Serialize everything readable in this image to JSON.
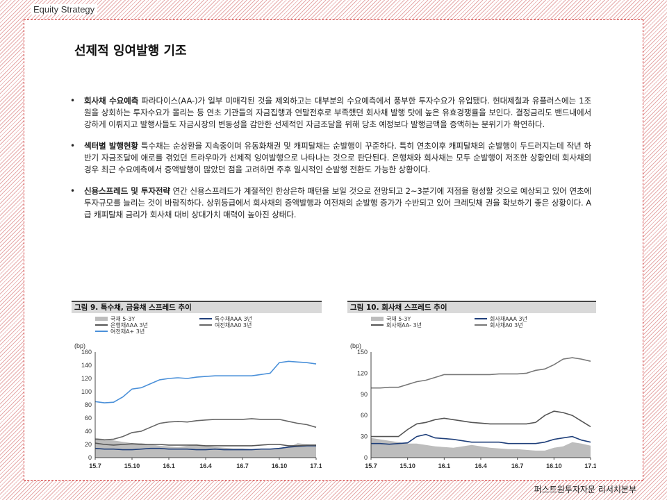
{
  "header": {
    "label": "Equity Strategy"
  },
  "title": "선제적 잉여발행 기조",
  "bullets": [
    {
      "bold": "회사채 수요예측",
      "text": " 파라다이스(AA-)가 일부 미매각된 것을 제외하고는 대부분의 수요예측에서 풍부한 투자수요가 유입됐다. 현대제철과 유플러스에는 1조원을 상회하는 투자수요가 몰리는 등 연초 기관들의 자금집행과 연말전후로 부족했던 회사채 발행 탓에 높은 유효경쟁률을 보인다. 결정금리도 밴드내에서 강하게 이뤄지고 발행사들도 자금시장의 변동성을 감안한 선제적인 자금조달을 위해 당초 예정보다 발행금액을 증액하는 분위기가 확연하다."
    },
    {
      "bold": "섹터별 발행현황",
      "text": " 특수채는 순상환을 지속중이며 유동화채권 및 캐피탈채는 순발행이 꾸준하다. 특히 연초이후 캐피탈채의 순발행이 두드러지는데 작년 하반기 자금조달에 애로를 겪었던 트라우마가 선제적 잉여발행으로 나타나는 것으로 판단된다. 은행채와 회사채는 모두 순발행이 저조한 상황인데 회사채의 경우 최근 수요예측에서 증액발행이 많았던 점을 고려하면 주후 일시적인 순발행 전환도 가능한 상황이다."
    },
    {
      "bold": "신용스프레드 및 투자전략",
      "text": " 연간 신용스프레드가 계절적인 한상은하 패턴을 보일 것으로 전망되고 2~3분기에 저점을 형성할 것으로 예상되고 있어 연초에 투자규모를 늘리는 것이 바람직하다. 상위등급에서 회사채의 증액발행과 여전채의 순발행 증가가 수반되고 있어 크레딧채 권을 확보하기 좋은 상황이다. A급 캐피탈채 금리가 회사채 대비 상대가치 매력이 높아진 상태다."
    }
  ],
  "footer": "퍼스트원투자자문 리서치본부",
  "chart_data": [
    {
      "type": "line",
      "title": "그림 9. 특수채, 금융채 스프레드 추이",
      "ylabel": "(bp)",
      "ylim": [
        0,
        160
      ],
      "yticks": [
        0,
        20,
        40,
        60,
        80,
        100,
        120,
        140,
        160
      ],
      "xticks": [
        "15.7",
        "15.10",
        "16.1",
        "16.4",
        "16.7",
        "16.10",
        "17.1"
      ],
      "x": [
        0,
        1,
        2,
        3,
        4,
        5,
        6,
        7,
        8,
        9,
        10,
        11,
        12,
        13,
        14,
        15,
        16,
        17,
        18,
        19,
        20,
        21,
        22,
        23,
        24
      ],
      "series": [
        {
          "name": "국채 5-3Y",
          "style": "area",
          "color": "#bdbdbd",
          "values": [
            30,
            28,
            26,
            24,
            22,
            22,
            20,
            18,
            17,
            16,
            18,
            20,
            18,
            16,
            15,
            14,
            14,
            13,
            12,
            12,
            15,
            16,
            22,
            20,
            18
          ]
        },
        {
          "name": "특수채AAA 3년",
          "color": "#1f3f7a",
          "values": [
            14,
            13,
            13,
            12,
            12,
            13,
            14,
            14,
            13,
            13,
            13,
            12,
            12,
            13,
            12,
            12,
            12,
            12,
            13,
            13,
            14,
            16,
            17,
            18,
            18
          ]
        },
        {
          "name": "은행채AAA 3년",
          "color": "#555555",
          "values": [
            22,
            20,
            19,
            20,
            21,
            20,
            20,
            20,
            19,
            19,
            19,
            19,
            18,
            18,
            18,
            18,
            18,
            18,
            19,
            20,
            20,
            18,
            18,
            19,
            19
          ]
        },
        {
          "name": "여전채AA0 3년",
          "color": "#666666",
          "values": [
            28,
            27,
            28,
            32,
            38,
            40,
            46,
            52,
            54,
            55,
            54,
            56,
            57,
            58,
            58,
            58,
            58,
            59,
            58,
            58,
            58,
            55,
            52,
            50,
            46
          ]
        },
        {
          "name": "여전채A+ 3년",
          "color": "#4a90d9",
          "values": [
            85,
            83,
            84,
            92,
            104,
            106,
            112,
            118,
            120,
            121,
            120,
            122,
            123,
            124,
            124,
            124,
            124,
            124,
            126,
            128,
            144,
            146,
            145,
            144,
            142
          ]
        }
      ]
    },
    {
      "type": "line",
      "title": "그림 10. 회사채 스프레드 추이",
      "ylabel": "(bp)",
      "ylim": [
        0,
        150
      ],
      "yticks": [
        0,
        30,
        60,
        90,
        120,
        150
      ],
      "xticks": [
        "15.7",
        "15.10",
        "16.1",
        "16.4",
        "16.7",
        "16.10",
        "17.1"
      ],
      "x": [
        0,
        1,
        2,
        3,
        4,
        5,
        6,
        7,
        8,
        9,
        10,
        11,
        12,
        13,
        14,
        15,
        16,
        17,
        18,
        19,
        20,
        21,
        22,
        23,
        24
      ],
      "series": [
        {
          "name": "국채 5-3Y",
          "style": "area",
          "color": "#bdbdbd",
          "values": [
            28,
            26,
            24,
            22,
            20,
            20,
            18,
            16,
            15,
            14,
            16,
            18,
            16,
            14,
            13,
            12,
            12,
            11,
            10,
            10,
            14,
            16,
            22,
            20,
            17
          ]
        },
        {
          "name": "회사채AAA 3년",
          "color": "#1f3f7a",
          "values": [
            20,
            20,
            19,
            20,
            21,
            30,
            33,
            28,
            27,
            26,
            24,
            22,
            22,
            22,
            22,
            20,
            20,
            20,
            20,
            22,
            26,
            28,
            30,
            25,
            22
          ]
        },
        {
          "name": "회사채AA- 3년",
          "color": "#555555",
          "values": [
            30,
            30,
            30,
            30,
            40,
            48,
            50,
            54,
            56,
            54,
            52,
            50,
            49,
            48,
            48,
            48,
            48,
            48,
            50,
            60,
            66,
            64,
            60,
            52,
            44
          ]
        },
        {
          "name": "회사채A0 3년",
          "color": "#777777",
          "values": [
            99,
            99,
            100,
            100,
            104,
            108,
            110,
            114,
            118,
            118,
            118,
            118,
            118,
            118,
            119,
            119,
            119,
            120,
            124,
            126,
            132,
            140,
            142,
            140,
            137
          ]
        }
      ]
    }
  ]
}
